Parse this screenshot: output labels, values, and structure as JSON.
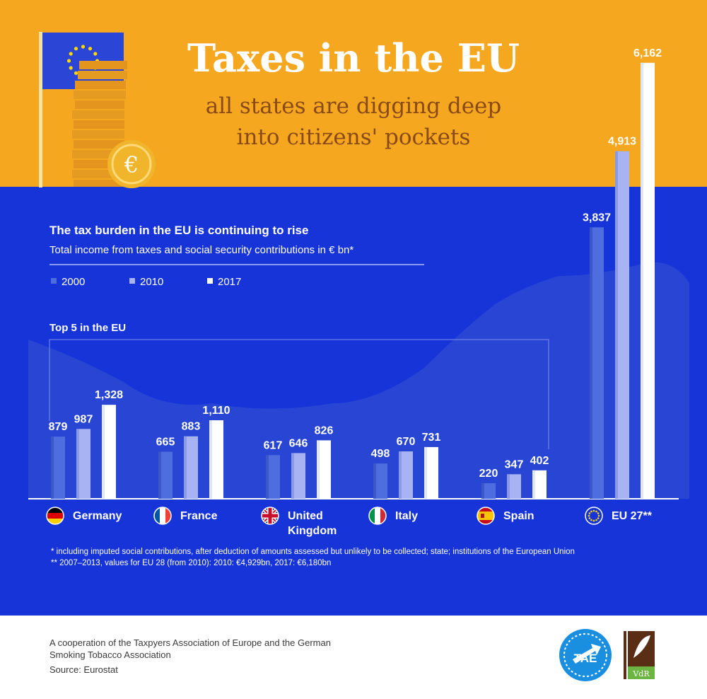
{
  "title": "Taxes in the EU",
  "subtitle_line1": "all states are digging deep",
  "subtitle_line2": "into citizens' pockets",
  "chart_data": {
    "type": "bar",
    "title": "The tax burden in the EU is continuing to rise",
    "subtitle": "Total income from taxes and social security contributions in € bn*",
    "section_label": "Top 5 in the EU",
    "categories": [
      "Germany",
      "France",
      "United Kingdom",
      "Italy",
      "Spain",
      "EU 27**"
    ],
    "category_lines": [
      [
        "Germany"
      ],
      [
        "France"
      ],
      [
        "United",
        "Kingdom"
      ],
      [
        "Italy"
      ],
      [
        "Spain"
      ],
      [
        "EU 27**"
      ]
    ],
    "series": [
      {
        "name": "2000",
        "values": [
          879,
          665,
          617,
          498,
          220,
          3837
        ],
        "labels": [
          "879",
          "665",
          "617",
          "498",
          "220",
          "3,837"
        ]
      },
      {
        "name": "2010",
        "values": [
          987,
          883,
          646,
          670,
          347,
          4913
        ],
        "labels": [
          "987",
          "883",
          "646",
          "670",
          "347",
          "4,913"
        ]
      },
      {
        "name": "2017",
        "values": [
          1328,
          1110,
          826,
          731,
          402,
          6162
        ],
        "labels": [
          "1,328",
          "1,110",
          "826",
          "731",
          "402",
          "6,162"
        ]
      }
    ],
    "colors": [
      "#4e6ee0",
      "#a7b3f2",
      "#ffffff"
    ],
    "flag_icons": [
      "germany-flag-icon",
      "france-flag-icon",
      "uk-flag-icon",
      "italy-flag-icon",
      "spain-flag-icon",
      "eu-flag-icon"
    ]
  },
  "footnote1": "*  including imputed social contributions, after deduction of amounts assessed but unlikely to be collected; state; institutions of the European Union",
  "footnote2": "** 2007–2013, values for EU 28 (from 2010): 2010: €4,929bn, 2017: €6,180bn",
  "footer_line1": "A cooperation of the Taxpyers Association of Europe and the German",
  "footer_line2": "Smoking Tobacco Association",
  "footer_source": "Source: Eurostat",
  "logos": {
    "tae": "TAE",
    "vdr": "VdR"
  },
  "colors": {
    "header": "#f5a81f",
    "panel": "#1634d8",
    "subtitle": "#8a4a17",
    "coin": "#f0b52a"
  }
}
